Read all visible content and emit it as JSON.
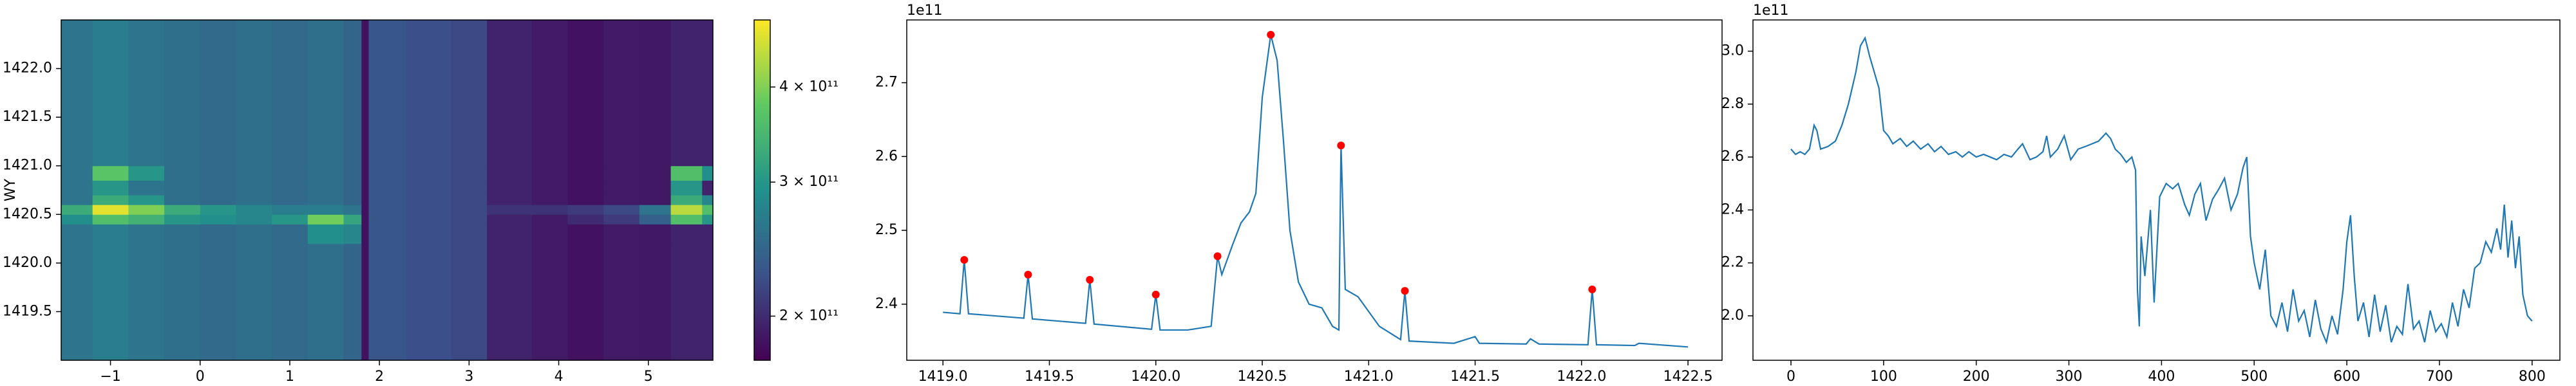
{
  "chart_data": [
    {
      "type": "heatmap",
      "ylabel": "WY",
      "colormap": "viridis",
      "x_bins": [
        -1.55,
        -1.2,
        -0.8,
        -0.4,
        0,
        0.4,
        0.8,
        1.2,
        1.6,
        1.8,
        1.88,
        2.3,
        2.8,
        3.2,
        3.7,
        4.1,
        4.5,
        4.9,
        5.25,
        5.6,
        5.72
      ],
      "y_bins": [
        1419.0,
        1420.2,
        1420.4,
        1420.5,
        1420.6,
        1420.7,
        1420.85,
        1421.0,
        1422.5
      ],
      "z": [
        [
          260000000000.0,
          270000000000.0,
          260000000000.0,
          255000000000.0,
          250000000000.0,
          255000000000.0,
          250000000000.0,
          255000000000.0,
          245000000000.0,
          185000000000.0,
          230000000000.0,
          225000000000.0,
          220000000000.0,
          195000000000.0,
          190000000000.0,
          185000000000.0,
          190000000000.0,
          188000000000.0,
          195000000000.0,
          195000000000.0
        ],
        [
          260000000000.0,
          270000000000.0,
          260000000000.0,
          255000000000.0,
          250000000000.0,
          255000000000.0,
          250000000000.0,
          290000000000.0,
          280000000000.0,
          185000000000.0,
          230000000000.0,
          225000000000.0,
          220000000000.0,
          195000000000.0,
          190000000000.0,
          185000000000.0,
          190000000000.0,
          188000000000.0,
          195000000000.0,
          195000000000.0
        ],
        [
          290000000000.0,
          360000000000.0,
          340000000000.0,
          300000000000.0,
          290000000000.0,
          280000000000.0,
          300000000000.0,
          390000000000.0,
          320000000000.0,
          185000000000.0,
          230000000000.0,
          225000000000.0,
          220000000000.0,
          195000000000.0,
          190000000000.0,
          200000000000.0,
          210000000000.0,
          240000000000.0,
          360000000000.0,
          300000000000.0
        ],
        [
          330000000000.0,
          470000000000.0,
          400000000000.0,
          330000000000.0,
          300000000000.0,
          280000000000.0,
          270000000000.0,
          270000000000.0,
          260000000000.0,
          185000000000.0,
          230000000000.0,
          225000000000.0,
          220000000000.0,
          205000000000.0,
          205000000000.0,
          210000000000.0,
          220000000000.0,
          260000000000.0,
          440000000000.0,
          360000000000.0
        ],
        [
          260000000000.0,
          330000000000.0,
          300000000000.0,
          255000000000.0,
          250000000000.0,
          255000000000.0,
          250000000000.0,
          255000000000.0,
          245000000000.0,
          185000000000.0,
          230000000000.0,
          225000000000.0,
          220000000000.0,
          195000000000.0,
          190000000000.0,
          185000000000.0,
          190000000000.0,
          188000000000.0,
          330000000000.0,
          280000000000.0
        ],
        [
          260000000000.0,
          300000000000.0,
          260000000000.0,
          255000000000.0,
          250000000000.0,
          255000000000.0,
          250000000000.0,
          255000000000.0,
          245000000000.0,
          185000000000.0,
          230000000000.0,
          225000000000.0,
          220000000000.0,
          195000000000.0,
          190000000000.0,
          185000000000.0,
          190000000000.0,
          188000000000.0,
          300000000000.0,
          195000000000.0
        ],
        [
          260000000000.0,
          370000000000.0,
          300000000000.0,
          255000000000.0,
          250000000000.0,
          255000000000.0,
          250000000000.0,
          255000000000.0,
          245000000000.0,
          185000000000.0,
          230000000000.0,
          225000000000.0,
          220000000000.0,
          195000000000.0,
          190000000000.0,
          185000000000.0,
          190000000000.0,
          188000000000.0,
          360000000000.0,
          290000000000.0
        ],
        [
          260000000000.0,
          270000000000.0,
          260000000000.0,
          255000000000.0,
          250000000000.0,
          255000000000.0,
          250000000000.0,
          255000000000.0,
          245000000000.0,
          185000000000.0,
          230000000000.0,
          225000000000.0,
          220000000000.0,
          195000000000.0,
          190000000000.0,
          185000000000.0,
          190000000000.0,
          188000000000.0,
          195000000000.0,
          195000000000.0
        ]
      ],
      "xlim": [
        -1.55,
        5.72
      ],
      "xticks": [
        {
          "value": -1,
          "label": "−1"
        },
        0,
        1,
        2,
        3,
        4,
        5
      ],
      "ylim": [
        1419.0,
        1422.5
      ],
      "yticks": [
        1419.5,
        {
          "value": 1420,
          "label": "1420.0"
        },
        1420.5,
        {
          "value": 1421,
          "label": "1421.0"
        },
        1421.5,
        {
          "value": 1422,
          "label": "1422.0"
        }
      ],
      "colorbar": {
        "scale": "log",
        "clim": [
          175000000000.0,
          490000000000.0
        ],
        "ticks": [
          {
            "value": 200000000000.0,
            "label": "2 × 10¹¹"
          },
          {
            "value": 300000000000.0,
            "label": "3 × 10¹¹"
          },
          {
            "value": 400000000000.0,
            "label": "4 × 10¹¹"
          }
        ]
      }
    },
    {
      "type": "line",
      "offset_text": "1e11",
      "x": [
        1419.0,
        1419.08,
        1419.1,
        1419.12,
        1419.38,
        1419.4,
        1419.42,
        1419.67,
        1419.69,
        1419.71,
        1419.98,
        1420.0,
        1420.02,
        1420.15,
        1420.26,
        1420.29,
        1420.31,
        1420.36,
        1420.4,
        1420.44,
        1420.47,
        1420.5,
        1420.54,
        1420.57,
        1420.6,
        1420.63,
        1420.67,
        1420.72,
        1420.78,
        1420.83,
        1420.86,
        1420.87,
        1420.89,
        1420.95,
        1421.05,
        1421.15,
        1421.17,
        1421.19,
        1421.4,
        1421.5,
        1421.52,
        1421.74,
        1421.76,
        1421.8,
        1422.03,
        1422.05,
        1422.07,
        1422.25,
        1422.27,
        1422.5
      ],
      "series": [
        {
          "color": "#1f77b4",
          "values": [
            2.389,
            2.387,
            2.46,
            2.387,
            2.381,
            2.44,
            2.38,
            2.374,
            2.433,
            2.373,
            2.366,
            2.413,
            2.365,
            2.365,
            2.37,
            2.465,
            2.44,
            2.48,
            2.51,
            2.525,
            2.55,
            2.68,
            2.765,
            2.73,
            2.62,
            2.5,
            2.43,
            2.4,
            2.395,
            2.37,
            2.365,
            2.615,
            2.42,
            2.41,
            2.37,
            2.352,
            2.418,
            2.35,
            2.347,
            2.356,
            2.347,
            2.346,
            2.353,
            2.346,
            2.345,
            2.42,
            2.345,
            2.344,
            2.347,
            2.342
          ]
        }
      ],
      "markers": {
        "color": "#ff0000",
        "x": [
          1419.1,
          1419.4,
          1419.69,
          1420.0,
          1420.29,
          1420.54,
          1420.87,
          1421.17,
          1422.05
        ],
        "values": [
          2.46,
          2.44,
          2.433,
          2.413,
          2.465,
          2.765,
          2.615,
          2.418,
          2.42
        ]
      },
      "xlim": [
        1418.83,
        1422.66
      ],
      "xticks": [
        {
          "value": 1419,
          "label": "1419.0"
        },
        1419.5,
        {
          "value": 1420,
          "label": "1420.0"
        },
        1420.5,
        {
          "value": 1421,
          "label": "1421.0"
        },
        1421.5,
        {
          "value": 1422,
          "label": "1422.0"
        },
        1422.5
      ],
      "ylim": [
        2.324,
        2.785
      ],
      "yticks": [
        2.4,
        2.5,
        2.6,
        2.7
      ]
    },
    {
      "type": "line",
      "offset_text": "1e11",
      "x": [
        0,
        5,
        10,
        15,
        20,
        25,
        28,
        32,
        40,
        48,
        55,
        62,
        70,
        75,
        80,
        85,
        90,
        95,
        100,
        105,
        110,
        118,
        125,
        132,
        140,
        148,
        155,
        162,
        170,
        178,
        185,
        192,
        200,
        208,
        215,
        222,
        230,
        238,
        245,
        250,
        258,
        265,
        272,
        276,
        280,
        288,
        295,
        302,
        310,
        318,
        325,
        332,
        340,
        345,
        350,
        356,
        362,
        368,
        372,
        374,
        376,
        378,
        382,
        388,
        392,
        398,
        405,
        412,
        418,
        425,
        430,
        436,
        442,
        448,
        455,
        462,
        468,
        475,
        482,
        488,
        492,
        496,
        500,
        506,
        512,
        518,
        524,
        530,
        536,
        542,
        548,
        554,
        560,
        566,
        572,
        578,
        584,
        590,
        596,
        600,
        604,
        608,
        612,
        618,
        624,
        630,
        636,
        642,
        648,
        654,
        660,
        666,
        672,
        678,
        684,
        690,
        696,
        702,
        708,
        714,
        720,
        726,
        732,
        738,
        744,
        750,
        756,
        762,
        766,
        770,
        774,
        778,
        782,
        786,
        790,
        795,
        800
      ],
      "series": [
        {
          "color": "#1f77b4",
          "values": [
            2.63,
            2.61,
            2.62,
            2.61,
            2.63,
            2.72,
            2.7,
            2.63,
            2.64,
            2.66,
            2.72,
            2.8,
            2.92,
            3.02,
            3.05,
            2.98,
            2.92,
            2.86,
            2.7,
            2.68,
            2.65,
            2.67,
            2.64,
            2.66,
            2.63,
            2.65,
            2.62,
            2.64,
            2.61,
            2.62,
            2.6,
            2.62,
            2.6,
            2.61,
            2.6,
            2.59,
            2.61,
            2.6,
            2.63,
            2.65,
            2.59,
            2.6,
            2.62,
            2.68,
            2.6,
            2.63,
            2.68,
            2.59,
            2.63,
            2.64,
            2.65,
            2.66,
            2.69,
            2.67,
            2.63,
            2.61,
            2.58,
            2.6,
            2.55,
            2.1,
            1.96,
            2.3,
            2.15,
            2.4,
            2.05,
            2.45,
            2.5,
            2.48,
            2.5,
            2.42,
            2.38,
            2.46,
            2.5,
            2.36,
            2.44,
            2.48,
            2.52,
            2.4,
            2.46,
            2.56,
            2.6,
            2.3,
            2.2,
            2.1,
            2.25,
            2.0,
            1.96,
            2.05,
            1.94,
            2.1,
            1.98,
            2.02,
            1.92,
            2.06,
            1.95,
            1.9,
            2.0,
            1.93,
            2.1,
            2.28,
            2.38,
            2.15,
            1.98,
            2.05,
            1.92,
            2.08,
            1.94,
            2.04,
            1.9,
            1.96,
            1.93,
            2.12,
            1.95,
            1.98,
            1.9,
            2.02,
            1.94,
            1.97,
            1.92,
            2.05,
            1.96,
            2.1,
            2.03,
            2.18,
            2.2,
            2.28,
            2.24,
            2.33,
            2.25,
            2.42,
            2.22,
            2.36,
            2.18,
            2.3,
            2.08,
            2.0,
            1.98
          ]
        }
      ],
      "xlim": [
        -41,
        830
      ],
      "xticks": [
        0,
        100,
        200,
        300,
        400,
        500,
        600,
        700,
        800
      ],
      "ylim": [
        1.832,
        3.118
      ],
      "yticks": [
        {
          "value": 2,
          "label": "2.0"
        },
        2.2,
        2.4,
        2.6,
        2.8,
        {
          "value": 3,
          "label": "3.0"
        }
      ]
    }
  ]
}
